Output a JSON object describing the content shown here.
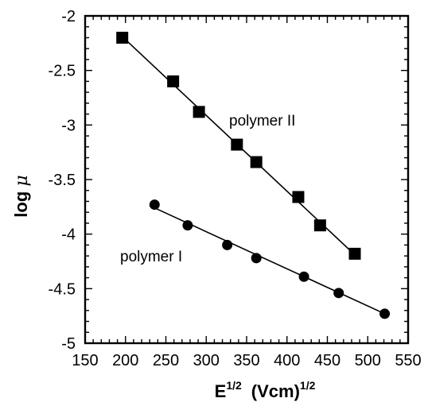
{
  "chart_data": {
    "type": "scatter",
    "xlabel_base": "E",
    "xlabel_sup": "1/2",
    "xlabel_unit": "(Vcm)",
    "xlabel_unit_sup": "1/2",
    "ylabel_text": "log ",
    "ylabel_symbol": "μ",
    "xlim": [
      150,
      550
    ],
    "ylim": [
      -5,
      -2
    ],
    "xticks": [
      150,
      200,
      250,
      300,
      350,
      400,
      450,
      500,
      550
    ],
    "yticks": [
      -2,
      -2.5,
      -3,
      -3.5,
      -4,
      -4.5,
      -5
    ],
    "xtick_labels": [
      "150",
      "200",
      "250",
      "300",
      "350",
      "400",
      "450",
      "500",
      "550"
    ],
    "ytick_labels": [
      "-2",
      "-2.5",
      "-3",
      "-3.5",
      "-4",
      "-4.5",
      "-5"
    ],
    "grid": false,
    "series": [
      {
        "name": "polymer II",
        "marker": "square",
        "x": [
          196,
          259,
          291,
          338,
          362,
          414,
          441,
          484
        ],
        "y": [
          -2.2,
          -2.6,
          -2.88,
          -3.18,
          -3.34,
          -3.66,
          -3.92,
          -4.18
        ],
        "fit_x": [
          196,
          484
        ],
        "fit_y": [
          -2.19,
          -4.19
        ]
      },
      {
        "name": "polymer I",
        "marker": "circle",
        "x": [
          236,
          277,
          326,
          362,
          421,
          464,
          521
        ],
        "y": [
          -3.73,
          -3.92,
          -4.1,
          -4.22,
          -4.39,
          -4.54,
          -4.73
        ],
        "fit_x": [
          236,
          521
        ],
        "fit_y": [
          -3.76,
          -4.73
        ]
      }
    ]
  }
}
